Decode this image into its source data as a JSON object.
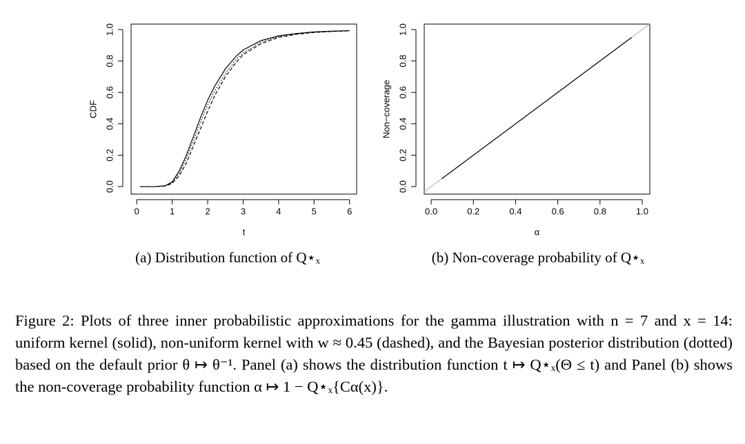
{
  "chart_data": [
    {
      "type": "line",
      "xlabel": "t",
      "ylabel": "CDF",
      "x": [
        0.1,
        0.5,
        0.8,
        1,
        1.2,
        1.4,
        1.6,
        1.8,
        2,
        2.2,
        2.5,
        2.8,
        3,
        3.5,
        4,
        4.5,
        5,
        5.5,
        6
      ],
      "series": [
        {
          "style": "solid",
          "color": "#000000",
          "values": [
            0,
            0,
            0.005,
            0.03,
            0.1,
            0.2,
            0.32,
            0.44,
            0.55,
            0.64,
            0.75,
            0.83,
            0.87,
            0.93,
            0.96,
            0.975,
            0.985,
            0.99,
            0.993
          ]
        },
        {
          "style": "dashed",
          "color": "#000000",
          "values": [
            0,
            0,
            0.003,
            0.02,
            0.07,
            0.15,
            0.26,
            0.37,
            0.48,
            0.58,
            0.7,
            0.79,
            0.84,
            0.91,
            0.95,
            0.97,
            0.982,
            0.988,
            0.992
          ]
        },
        {
          "style": "dotted",
          "color": "#000000",
          "values": [
            0,
            0,
            0.004,
            0.025,
            0.085,
            0.18,
            0.29,
            0.41,
            0.52,
            0.61,
            0.72,
            0.81,
            0.85,
            0.92,
            0.955,
            0.972,
            0.983,
            0.989,
            0.992
          ]
        }
      ],
      "xlim": [
        -0.16,
        6.2
      ],
      "xticks": [
        0,
        1,
        2,
        3,
        4,
        5,
        6
      ],
      "ylim": [
        -0.048,
        1.035
      ],
      "yticks": [
        {
          "value": 0,
          "label": "0.0"
        },
        0.2,
        0.4,
        0.6,
        0.8,
        {
          "value": 1,
          "label": "1.0"
        }
      ],
      "diagonal": false
    },
    {
      "type": "line",
      "xlabel": "α",
      "ylabel": "Non−coverage",
      "x": [
        0.05,
        0.95
      ],
      "series": [
        {
          "style": "solid",
          "color": "#000000",
          "values": [
            0.05,
            0.95
          ]
        }
      ],
      "xlim": [
        -0.033,
        1.036
      ],
      "xticks": [
        {
          "value": 0,
          "label": "0.0"
        },
        0.2,
        0.4,
        0.6,
        0.8,
        {
          "value": 1,
          "label": "1.0"
        }
      ],
      "ylim": [
        -0.048,
        1.035
      ],
      "yticks": [
        {
          "value": 0,
          "label": "0.0"
        },
        0.2,
        0.4,
        0.6,
        0.8,
        {
          "value": 1,
          "label": "1.0"
        }
      ],
      "diagonal": true,
      "diagonal_color": "#bbbbbb"
    }
  ],
  "subcaptions": [
    "(a) Distribution function of Q⋆ₓ",
    "(b) Non-coverage probability of Q⋆ₓ"
  ],
  "caption": "Figure 2: Plots of three inner probabilistic approximations for the gamma illustration with n = 7 and x = 14: uniform kernel (solid), non-uniform kernel with w ≈ 0.45 (dashed), and the Bayesian posterior distribution (dotted) based on the default prior θ ↦ θ⁻¹. Panel (a) shows the distribution function t ↦ Q⋆ₓ(Θ ≤ t) and Panel (b) shows the non-coverage probability function α ↦ 1 − Q⋆ₓ{Cα(x)}."
}
